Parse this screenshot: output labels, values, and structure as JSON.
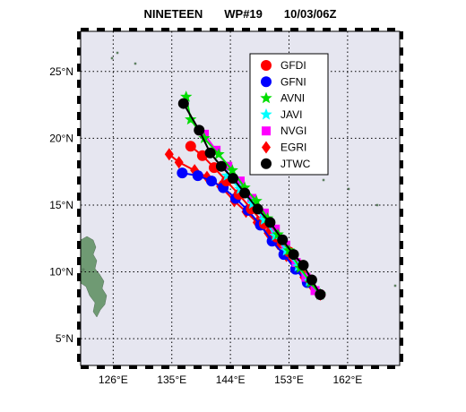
{
  "header": {
    "storm": "NINETEEN",
    "id": "WP#19",
    "datetime": "10/03/06Z"
  },
  "chart_data": {
    "type": "line",
    "map": "western-pacific",
    "xlim": [
      121,
      170
    ],
    "ylim": [
      3,
      28
    ],
    "x_ticks": [
      126,
      135,
      144,
      153,
      162
    ],
    "y_ticks": [
      5,
      10,
      15,
      20,
      25
    ],
    "x_tick_labels": [
      "126°E",
      "135°E",
      "144°E",
      "153°E",
      "162°E"
    ],
    "y_tick_labels": [
      "5°N",
      "10°N",
      "15°N",
      "20°N",
      "25°N"
    ],
    "grid": true,
    "legend_position": "top-right",
    "colors": {
      "ocean": "#e6e6f0",
      "land": "#6f9a73",
      "grid": "#000000",
      "frame_dash": "#000000"
    },
    "series": [
      {
        "name": "GFDI",
        "color": "#ff0000",
        "marker": "circle",
        "points": [
          [
            157.8,
            8.3
          ],
          [
            156.3,
            9.4
          ],
          [
            154.7,
            10.5
          ],
          [
            153.0,
            11.5
          ],
          [
            151.1,
            12.6
          ],
          [
            149.2,
            13.6
          ],
          [
            147.2,
            14.7
          ],
          [
            145.3,
            15.8
          ],
          [
            143.4,
            16.8
          ],
          [
            141.5,
            17.8
          ],
          [
            139.7,
            18.7
          ],
          [
            137.9,
            19.4
          ]
        ]
      },
      {
        "name": "GFNI",
        "color": "#0000ff",
        "marker": "circle",
        "points": [
          [
            157.8,
            8.3
          ],
          [
            155.8,
            9.2
          ],
          [
            154.0,
            10.2
          ],
          [
            152.2,
            11.3
          ],
          [
            150.4,
            12.3
          ],
          [
            148.6,
            13.5
          ],
          [
            146.7,
            14.6
          ],
          [
            144.8,
            15.5
          ],
          [
            142.9,
            16.3
          ],
          [
            141.1,
            16.8
          ],
          [
            139.0,
            17.2
          ],
          [
            136.6,
            17.4
          ]
        ]
      },
      {
        "name": "AVNI",
        "color": "#00dd00",
        "marker": "star",
        "points": [
          [
            157.8,
            8.3
          ],
          [
            156.3,
            9.2
          ],
          [
            154.7,
            10.3
          ],
          [
            153.0,
            11.6
          ],
          [
            151.3,
            12.8
          ],
          [
            149.7,
            14.0
          ],
          [
            148.0,
            15.3
          ],
          [
            146.2,
            16.3
          ],
          [
            144.3,
            17.6
          ],
          [
            142.2,
            18.8
          ],
          [
            140.0,
            20.0
          ],
          [
            137.9,
            21.4
          ],
          [
            137.2,
            23.1
          ]
        ]
      },
      {
        "name": "JAVI",
        "color": "#00ffff",
        "marker": "star",
        "points": [
          [
            157.8,
            8.3
          ],
          [
            156.1,
            9.3
          ],
          [
            154.4,
            10.4
          ],
          [
            152.6,
            11.6
          ],
          [
            150.9,
            12.7
          ],
          [
            149.2,
            13.9
          ],
          [
            147.4,
            15.1
          ],
          [
            145.5,
            16.2
          ],
          [
            143.5,
            17.2
          ]
        ]
      },
      {
        "name": "NVGI",
        "color": "#ff00ff",
        "marker": "square",
        "points": [
          [
            157.0,
            8.6
          ],
          [
            155.6,
            9.6
          ],
          [
            154.1,
            10.7
          ],
          [
            152.5,
            12.0
          ],
          [
            150.9,
            13.2
          ],
          [
            149.2,
            14.4
          ],
          [
            147.3,
            15.5
          ],
          [
            145.5,
            16.8
          ],
          [
            143.6,
            17.9
          ],
          [
            141.8,
            19.1
          ],
          [
            140.0,
            20.3
          ]
        ]
      },
      {
        "name": "EGRI",
        "color": "#ff0000",
        "marker": "diamond",
        "points": [
          [
            157.8,
            8.3
          ],
          [
            156.6,
            8.9
          ],
          [
            155.3,
            9.6
          ],
          [
            154.0,
            10.4
          ],
          [
            152.6,
            11.2
          ],
          [
            151.3,
            12.1
          ],
          [
            149.8,
            12.9
          ],
          [
            148.1,
            13.7
          ],
          [
            146.4,
            14.5
          ],
          [
            144.6,
            15.3
          ],
          [
            142.5,
            16.4
          ],
          [
            140.4,
            17.1
          ],
          [
            138.5,
            17.6
          ],
          [
            136.1,
            18.2
          ],
          [
            134.6,
            18.8
          ]
        ]
      },
      {
        "name": "JTWC",
        "color": "#000000",
        "marker": "circle",
        "points": [
          [
            157.8,
            8.3
          ],
          [
            156.5,
            9.4
          ],
          [
            155.2,
            10.5
          ],
          [
            153.7,
            11.3
          ],
          [
            152.0,
            12.4
          ],
          [
            150.1,
            13.7
          ],
          [
            148.2,
            14.7
          ],
          [
            146.2,
            15.9
          ],
          [
            144.4,
            17.0
          ],
          [
            142.6,
            17.9
          ],
          [
            140.9,
            18.9
          ],
          [
            139.2,
            20.6
          ],
          [
            136.8,
            22.6
          ]
        ]
      }
    ]
  }
}
